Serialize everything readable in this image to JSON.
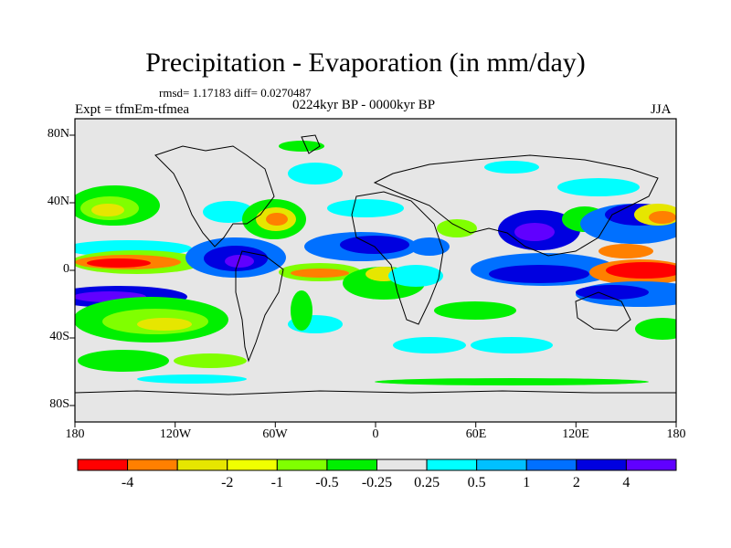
{
  "title": "Precipitation - Evaporation (in mm/day)",
  "stats": "rmsd= 1.17183 diff= 0.0270487",
  "period": "0224kyr BP - 0000kyr BP",
  "experiment": "Expt = tfmEm-tfmea",
  "season": "JJA",
  "lat_labels": [
    "80N",
    "40N",
    "0",
    "40S",
    "80S"
  ],
  "lon_labels": [
    "180",
    "120W",
    "60W",
    "0",
    "60E",
    "120E",
    "180"
  ],
  "colorbar": {
    "colors": [
      "#ff0000",
      "#ff8000",
      "#e6e600",
      "#f0ff00",
      "#80ff00",
      "#00f000",
      "#e6e6e6",
      "#00ffff",
      "#00c0ff",
      "#0070ff",
      "#0000e0",
      "#6000ff"
    ],
    "labels": [
      "-4",
      "-2",
      "-1",
      "-0.5",
      "-0.25",
      "0.25",
      "0.5",
      "1",
      "2",
      "4"
    ]
  },
  "colors": {
    "no_change": "#e6e6e6",
    "coast": "#000000"
  }
}
